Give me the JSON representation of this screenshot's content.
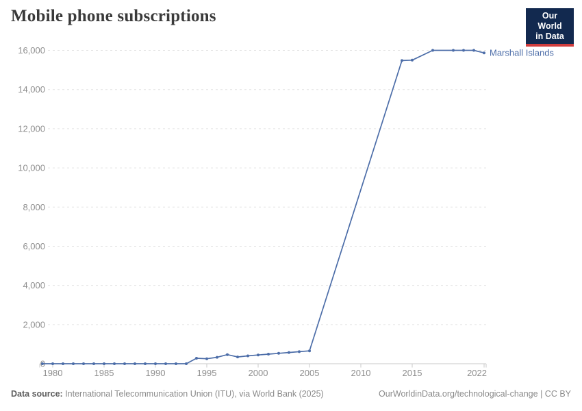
{
  "header": {
    "title": "Mobile phone subscriptions"
  },
  "logo": {
    "line1": "Our World",
    "line2": "in Data",
    "bg_color": "#12294f",
    "accent_color": "#d13d3d"
  },
  "chart_data": {
    "type": "line",
    "title": "Mobile phone subscriptions",
    "xlabel": "",
    "ylabel": "",
    "xlim": [
      1979,
      2022
    ],
    "ylim": [
      0,
      16000
    ],
    "x_ticks": [
      1980,
      1985,
      1990,
      1995,
      2000,
      2005,
      2010,
      2015,
      2022
    ],
    "y_ticks": [
      0,
      2000,
      4000,
      6000,
      8000,
      10000,
      12000,
      14000,
      16000
    ],
    "grid": "horizontal-dashed",
    "legend_position": "end-of-line-label",
    "series": [
      {
        "name": "Marshall Islands",
        "color": "#4c6da8",
        "points": [
          [
            1979,
            0
          ],
          [
            1980,
            0
          ],
          [
            1981,
            0
          ],
          [
            1982,
            0
          ],
          [
            1983,
            0
          ],
          [
            1984,
            0
          ],
          [
            1985,
            0
          ],
          [
            1986,
            0
          ],
          [
            1987,
            0
          ],
          [
            1988,
            0
          ],
          [
            1989,
            0
          ],
          [
            1990,
            0
          ],
          [
            1991,
            0
          ],
          [
            1992,
            0
          ],
          [
            1993,
            0
          ],
          [
            1994,
            280
          ],
          [
            1995,
            255
          ],
          [
            1996,
            330
          ],
          [
            1997,
            466
          ],
          [
            1998,
            345
          ],
          [
            1999,
            401
          ],
          [
            2000,
            447
          ],
          [
            2001,
            489
          ],
          [
            2002,
            531
          ],
          [
            2003,
            573
          ],
          [
            2004,
            615
          ],
          [
            2005,
            658
          ],
          [
            2014,
            15480
          ],
          [
            2015,
            15500
          ],
          [
            2017,
            16000
          ],
          [
            2019,
            16000
          ],
          [
            2020,
            16000
          ],
          [
            2021,
            16000
          ],
          [
            2022,
            15870
          ]
        ]
      }
    ]
  },
  "colors": {
    "line": "#4c6da8",
    "gridline": "#e2e2e2",
    "axis": "#c8c8c8",
    "tick_label": "#8e8e8e",
    "title": "#3a3a3a"
  },
  "footer": {
    "source_label": "Data source:",
    "source_text": " International Telecommunication Union (ITU), via World Bank (2025)",
    "site_url": "OurWorldinData.org/technological-change",
    "separator": " | ",
    "license": "CC BY"
  }
}
